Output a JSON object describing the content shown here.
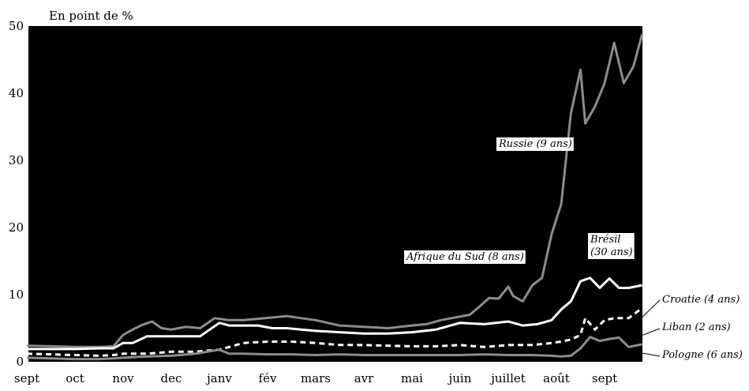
{
  "chart_data": {
    "type": "line",
    "title": "En point de %",
    "xlabel": "",
    "ylabel": "",
    "ylim": [
      0,
      50
    ],
    "yticks": [
      0,
      10,
      20,
      30,
      40,
      50
    ],
    "x_categories": [
      "sept",
      "oct",
      "nov",
      "dec",
      "janv",
      "fév",
      "mars",
      "avr",
      "mai",
      "juin",
      "juillet",
      "août",
      "sept"
    ],
    "x_range": [
      0,
      12.8
    ],
    "grid": false,
    "series": [
      {
        "name": "Russie (9 ans)",
        "color": "#8c8c8c",
        "style": "solid",
        "label_position": "inside",
        "x": [
          0,
          0.5,
          1,
          1.5,
          1.8,
          2.0,
          2.2,
          2.4,
          2.6,
          2.8,
          3.0,
          3.3,
          3.6,
          3.9,
          4.2,
          4.5,
          4.8,
          5.1,
          5.4,
          5.7,
          6.0,
          6.5,
          7.0,
          7.5,
          8.0,
          8.3,
          8.6,
          8.9,
          9.2,
          9.4,
          9.6,
          9.8,
          10.0,
          10.1,
          10.3,
          10.5,
          10.7,
          10.9,
          11.1,
          11.3,
          11.5,
          11.6,
          11.8,
          12.0,
          12.2,
          12.4,
          12.6,
          12.78
        ],
        "y": [
          2.4,
          2.3,
          2.2,
          2.2,
          2.3,
          4.0,
          4.8,
          5.5,
          6.0,
          5.0,
          4.8,
          5.2,
          5.0,
          6.5,
          6.2,
          6.2,
          6.4,
          6.6,
          6.8,
          6.5,
          6.2,
          5.4,
          5.2,
          5.0,
          5.4,
          5.6,
          6.2,
          6.6,
          7.0,
          8.2,
          9.5,
          9.4,
          11.2,
          9.8,
          9.0,
          11.4,
          12.5,
          19.0,
          23.5,
          37.0,
          43.5,
          35.5,
          38.0,
          41.5,
          47.5,
          41.5,
          44.0,
          48.8
        ]
      },
      {
        "name": "Brésil (30 ans)",
        "color": "#ffffff",
        "style": "solid",
        "label_position": "inside",
        "x": [
          0,
          0.5,
          1,
          1.5,
          1.8,
          2.0,
          2.2,
          2.5,
          2.8,
          3.2,
          3.6,
          4.0,
          4.2,
          4.5,
          4.8,
          5.1,
          5.4,
          5.7,
          6.0,
          6.5,
          7.0,
          7.5,
          8.0,
          8.5,
          9.0,
          9.5,
          10.0,
          10.3,
          10.6,
          10.9,
          11.1,
          11.3,
          11.5,
          11.7,
          11.9,
          12.1,
          12.3,
          12.5,
          12.78
        ],
        "y": [
          1.9,
          1.9,
          1.9,
          2.0,
          2.0,
          2.8,
          2.8,
          3.8,
          3.8,
          3.8,
          3.8,
          5.8,
          5.4,
          5.4,
          5.4,
          5.0,
          5.0,
          4.8,
          4.6,
          4.4,
          4.2,
          4.2,
          4.4,
          4.8,
          5.8,
          5.6,
          6.0,
          5.4,
          5.6,
          6.2,
          7.8,
          9.0,
          12.0,
          12.5,
          11.0,
          12.4,
          11.0,
          11.0,
          11.4
        ]
      },
      {
        "name": "Afrique du Sud (8 ans)",
        "color": "#ffffff",
        "style": "dashed",
        "label_position": "inside",
        "x": [
          0,
          0.5,
          1,
          1.5,
          1.8,
          2.0,
          2.5,
          3.0,
          3.5,
          4.0,
          4.5,
          5.0,
          5.5,
          6.0,
          6.5,
          7.0,
          7.5,
          8.0,
          8.5,
          9.0,
          9.5,
          10.0,
          10.5,
          10.9,
          11.1,
          11.3,
          11.5,
          11.6,
          11.8,
          12.0,
          12.2,
          12.5,
          12.78
        ],
        "y": [
          1.2,
          1.1,
          1.0,
          0.9,
          1.0,
          1.2,
          1.2,
          1.5,
          1.5,
          1.8,
          2.8,
          3.0,
          3.0,
          2.8,
          2.5,
          2.5,
          2.4,
          2.3,
          2.3,
          2.5,
          2.2,
          2.5,
          2.5,
          2.8,
          3.0,
          3.3,
          4.0,
          6.5,
          4.8,
          6.2,
          6.5,
          6.5,
          8.0
        ]
      },
      {
        "name": "Croatie (4 ans)",
        "color": "#8c8c8c",
        "style": "solid",
        "label_position": "outside",
        "x": [
          0,
          0.5,
          1,
          1.5,
          1.8,
          2.0,
          2.5,
          3.0,
          3.5,
          4.0,
          4.2,
          4.5,
          5.0,
          5.5,
          6.0,
          6.5,
          7.0,
          7.5,
          8.0,
          8.5,
          9.0,
          9.5,
          10.0,
          10.5,
          10.9,
          11.1,
          11.3,
          11.5,
          11.7,
          11.9,
          12.1,
          12.3,
          12.5,
          12.78
        ],
        "y": [
          0.6,
          0.5,
          0.4,
          0.4,
          0.5,
          0.6,
          0.8,
          0.9,
          1.2,
          1.8,
          1.2,
          1.2,
          1.1,
          1.1,
          1.0,
          1.1,
          1.0,
          1.0,
          1.0,
          1.0,
          1.0,
          1.1,
          1.0,
          1.0,
          0.9,
          0.8,
          0.9,
          2.0,
          3.7,
          3.1,
          3.4,
          3.6,
          2.2,
          2.6
        ]
      },
      {
        "name": "Liban (2 ans)",
        "color": "#000000",
        "style": "solid",
        "label_position": "outside",
        "x": [],
        "y": []
      },
      {
        "name": "Pologne (6 ans)",
        "color": "#000000",
        "style": "solid",
        "label_position": "outside",
        "x": [],
        "y": []
      }
    ],
    "legend": "inline"
  }
}
